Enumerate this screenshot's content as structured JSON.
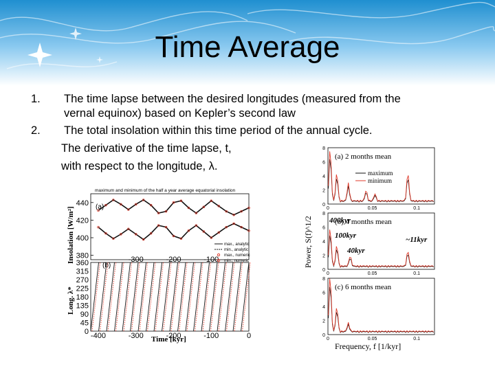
{
  "slide": {
    "title": "Time Average",
    "items": [
      {
        "number": "1.",
        "text_line1": "The time lapse between the desired longitudes (measured from the",
        "text_line2": "vernal equinox) based on Kepler’s second law"
      },
      {
        "number": "2.",
        "text_line1": "The total insolation within this time period of the annual cycle."
      }
    ],
    "extra_line1": "The derivative of the time lapse, t,",
    "extra_line2": "with respect to the longitude, λ."
  },
  "colors": {
    "banner_top": "#1f8fd0",
    "banner_bottom": "#ffffff",
    "series_red": "#e03a2a",
    "series_black": "#111111"
  },
  "chart_data": [
    {
      "type": "line",
      "panel": "a",
      "title": "maximum and minimum of the half a year average equatorial insolation",
      "panel_label": "(a)",
      "ylabel": "Insolation [W/m²]",
      "xlabel": "",
      "x": [
        -400,
        -380,
        -360,
        -340,
        -320,
        -300,
        -280,
        -260,
        -240,
        -220,
        -200,
        -180,
        -160,
        -140,
        -120,
        -100,
        -80,
        -60,
        -40,
        -20,
        0
      ],
      "series": [
        {
          "name": "max., analytic",
          "values": [
            431,
            437,
            443,
            438,
            432,
            438,
            443,
            437,
            428,
            430,
            440,
            442,
            434,
            428,
            435,
            442,
            436,
            430,
            426,
            430,
            434
          ]
        },
        {
          "name": "min., analytic",
          "values": [
            412,
            405,
            399,
            404,
            410,
            404,
            398,
            405,
            414,
            412,
            402,
            399,
            408,
            414,
            407,
            400,
            406,
            412,
            416,
            412,
            408
          ]
        },
        {
          "name": "max., numeric",
          "values": [
            431,
            437,
            443,
            438,
            432,
            438,
            443,
            437,
            428,
            430,
            440,
            442,
            434,
            428,
            435,
            442,
            436,
            430,
            426,
            430,
            434
          ]
        },
        {
          "name": "min., numeric",
          "values": [
            412,
            405,
            399,
            404,
            410,
            404,
            398,
            405,
            414,
            412,
            402,
            399,
            408,
            414,
            407,
            400,
            406,
            412,
            416,
            412,
            408
          ]
        }
      ],
      "yticks": [
        "440",
        "420",
        "400",
        "380"
      ],
      "xticks": [
        "-300",
        "-200",
        "-100"
      ],
      "ylim": [
        375,
        450
      ]
    },
    {
      "type": "line",
      "panel": "b",
      "panel_label": "(b)",
      "ylabel": "Long. λ*",
      "xlabel": "Time [kyr]",
      "xlim": [
        -400,
        0
      ],
      "ylim": [
        0,
        360
      ],
      "yticks": [
        "360",
        "270",
        "180",
        "90",
        "0"
      ],
      "yticks_extra": [
        "315",
        "225",
        "135",
        "45"
      ],
      "xticks": [
        "-400",
        "-300",
        "-200",
        "-100",
        "0"
      ],
      "sawtooth_period_kyr": 21
    },
    {
      "type": "line",
      "panels": [
        {
          "label": "(a) 2 months mean",
          "legend": [
            "maximum",
            "minimum"
          ],
          "peaks_x": [
            0.0025,
            0.01,
            0.023,
            0.043,
            0.053,
            0.09
          ],
          "peaks_y": [
            7.5,
            4,
            2.5,
            1.5,
            1,
            4
          ]
        },
        {
          "label": "(b) 4 months mean",
          "annotations": [
            "400kyr",
            "100kyr",
            "40kyr",
            "~11kyr"
          ],
          "peaks_x": [
            0.0025,
            0.01,
            0.025,
            0.09
          ],
          "peaks_y": [
            5.5,
            3,
            1.5,
            2.2
          ]
        },
        {
          "label": "(c) 6 months mean",
          "peaks_x": [
            0.0025,
            0.01,
            0.023
          ],
          "peaks_y": [
            8,
            3.5,
            1.2
          ]
        }
      ],
      "ylabel": "Power, S(f)^1/2",
      "xlabel": "Frequency, f [1/kyr]",
      "xticks": [
        "0",
        "0.05",
        "0.1"
      ],
      "yticks": [
        "8",
        "6",
        "4",
        "2",
        "0"
      ],
      "xlim": [
        0,
        0.12
      ],
      "ylim": [
        0,
        8
      ]
    }
  ]
}
